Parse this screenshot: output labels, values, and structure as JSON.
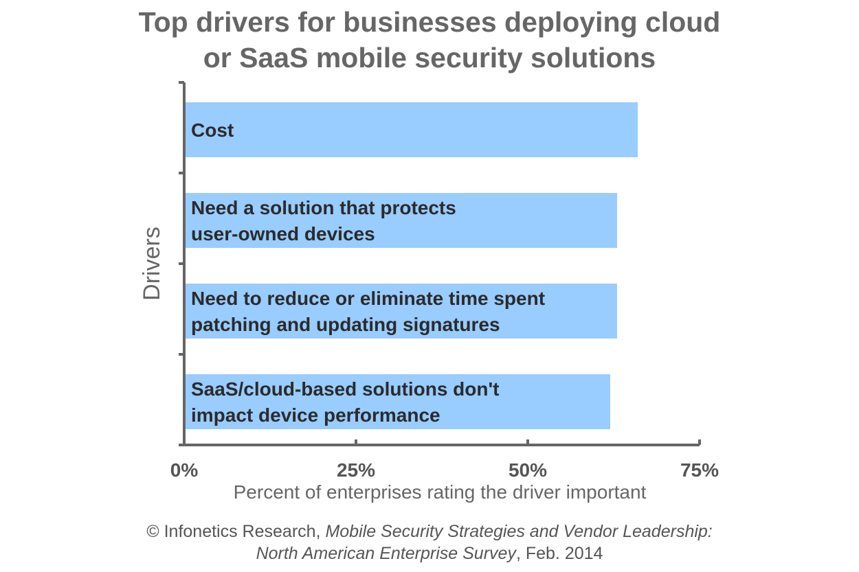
{
  "title": {
    "line1": "Top drivers for businesses deploying cloud",
    "line2": "or SaaS mobile security solutions"
  },
  "source": {
    "prefix": "© Infonetics Research, ",
    "report_line1": "Mobile Security Strategies and Vendor Leadership:",
    "report_line2": "North American Enterprise Survey",
    "suffix": ", Feb. 2014"
  },
  "colors": {
    "bar": "#99ccff",
    "axis": "#666666"
  },
  "chart_data": {
    "type": "bar",
    "orientation": "horizontal",
    "title": "Top drivers for businesses deploying cloud or SaaS mobile security solutions",
    "xlabel": "Percent of enterprises rating the driver important",
    "ylabel": "Drivers",
    "xlim": [
      0,
      75
    ],
    "x_ticks": [
      "0%",
      "25%",
      "50%",
      "75%"
    ],
    "grid": false,
    "categories": [
      [
        "Cost"
      ],
      [
        "Need a solution that protects",
        "user-owned devices"
      ],
      [
        "Need to reduce or eliminate time spent",
        "patching and updating signatures"
      ],
      [
        "SaaS/cloud-based solutions don't",
        "impact device performance"
      ]
    ],
    "values": [
      66,
      63,
      63,
      62
    ]
  }
}
